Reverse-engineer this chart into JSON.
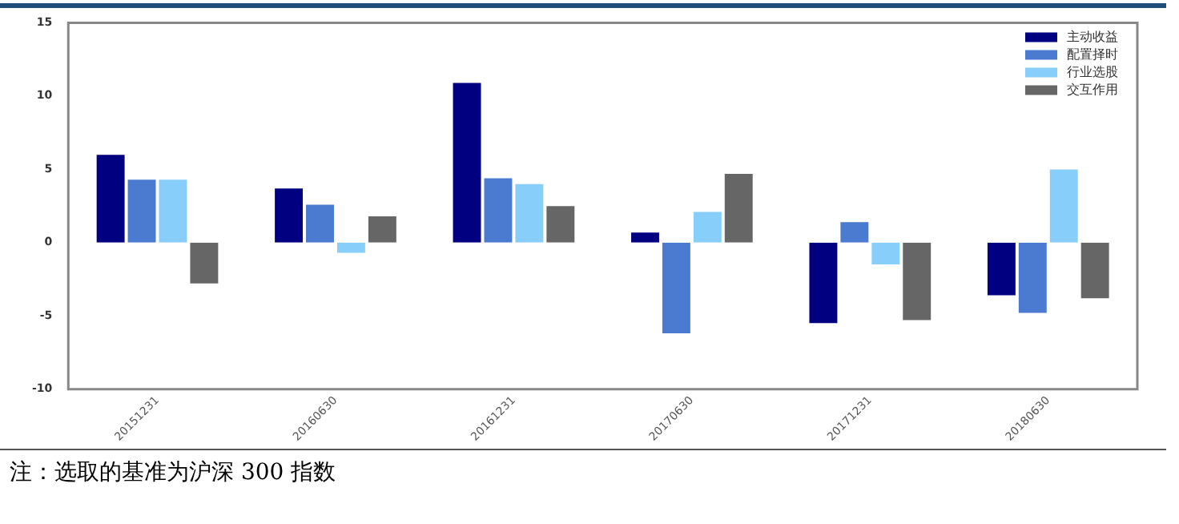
{
  "chart_data": {
    "type": "bar",
    "categories": [
      "20151231",
      "20160630",
      "20161231",
      "20170630",
      "20171231",
      "20180630"
    ],
    "series": [
      {
        "name": "主动收益",
        "color": "#000080",
        "values": [
          6.1,
          3.8,
          11.0,
          0.8,
          -5.6,
          -3.7
        ]
      },
      {
        "name": "配置择时",
        "color": "#4a7bd0",
        "values": [
          4.4,
          2.7,
          4.5,
          -6.3,
          1.5,
          -4.9
        ]
      },
      {
        "name": "行业选股",
        "color": "#87cefa",
        "values": [
          4.4,
          -0.8,
          4.1,
          2.2,
          -1.6,
          5.1
        ]
      },
      {
        "name": "交互作用",
        "color": "#666666",
        "values": [
          -2.9,
          1.9,
          2.6,
          4.8,
          -5.4,
          -3.9
        ]
      }
    ],
    "ylim": [
      -10,
      15
    ],
    "yticks": [
      -10,
      -5,
      0,
      5,
      10,
      15
    ],
    "grid": false,
    "legend": "top right",
    "annotations": [
      "注：选取的基准为沪深 300 指数"
    ]
  }
}
